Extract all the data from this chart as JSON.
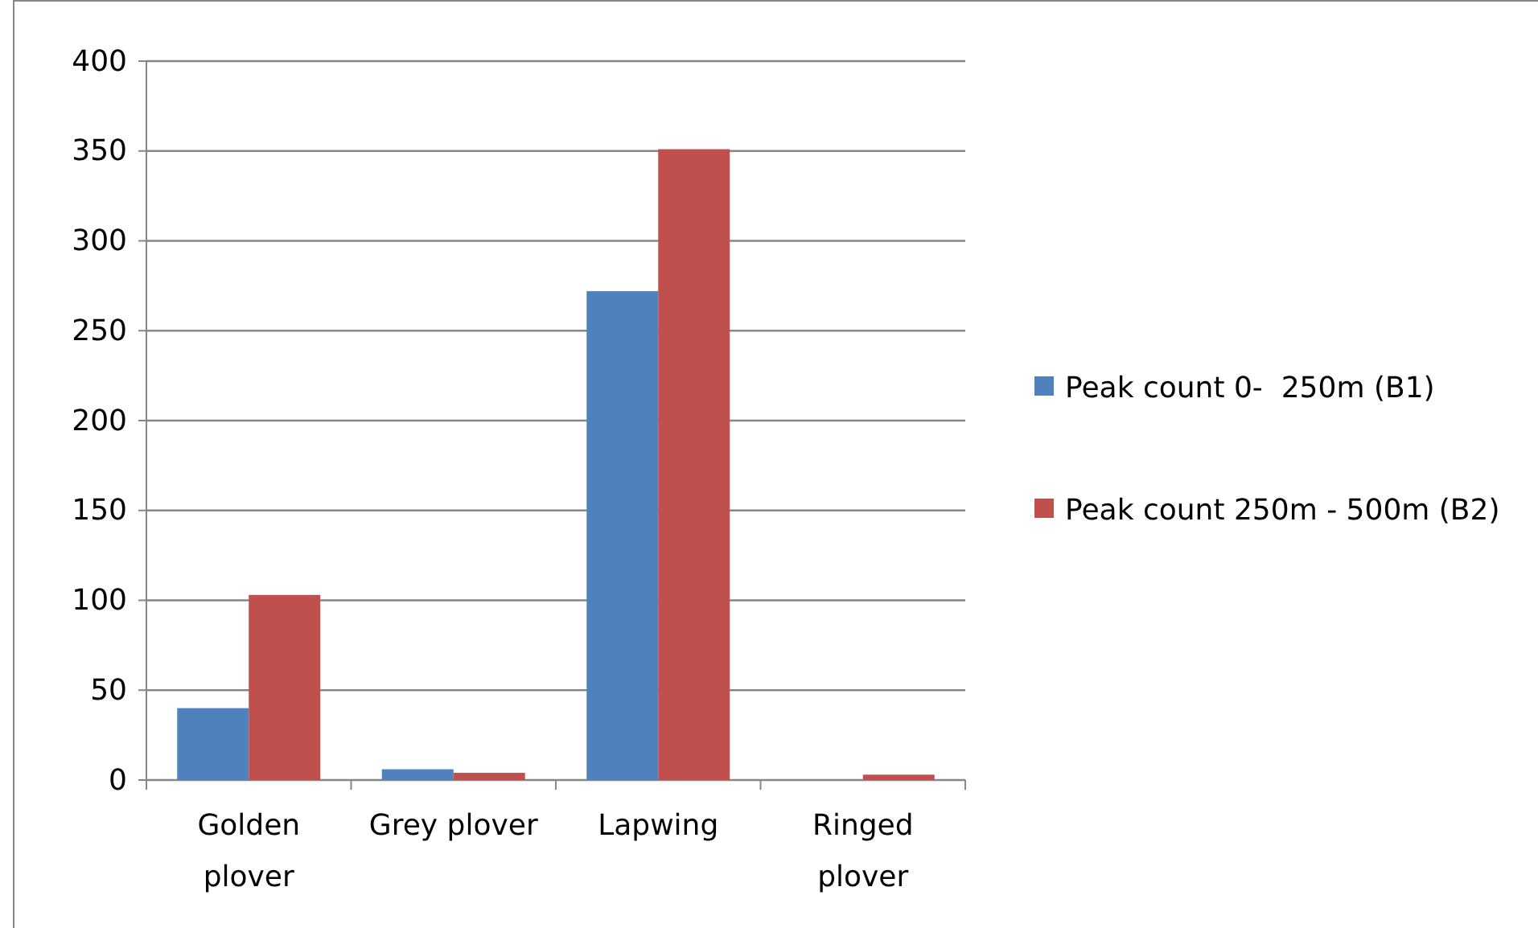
{
  "chart_data": {
    "type": "bar",
    "categories": [
      "Golden plover",
      "Grey plover",
      "Lapwing",
      "Ringed plover"
    ],
    "series": [
      {
        "name": "Peak count 0-  250m (B1)",
        "color": "#4f81bd",
        "values": [
          40,
          6,
          272,
          0
        ]
      },
      {
        "name": "Peak count 250m - 500m (B2)",
        "color": "#c0504d",
        "values": [
          103,
          4,
          351,
          3
        ]
      }
    ],
    "ylim": [
      0,
      400
    ],
    "yticks": [
      0,
      50,
      100,
      150,
      200,
      250,
      300,
      350,
      400
    ],
    "grid": "y",
    "legend": "right"
  }
}
